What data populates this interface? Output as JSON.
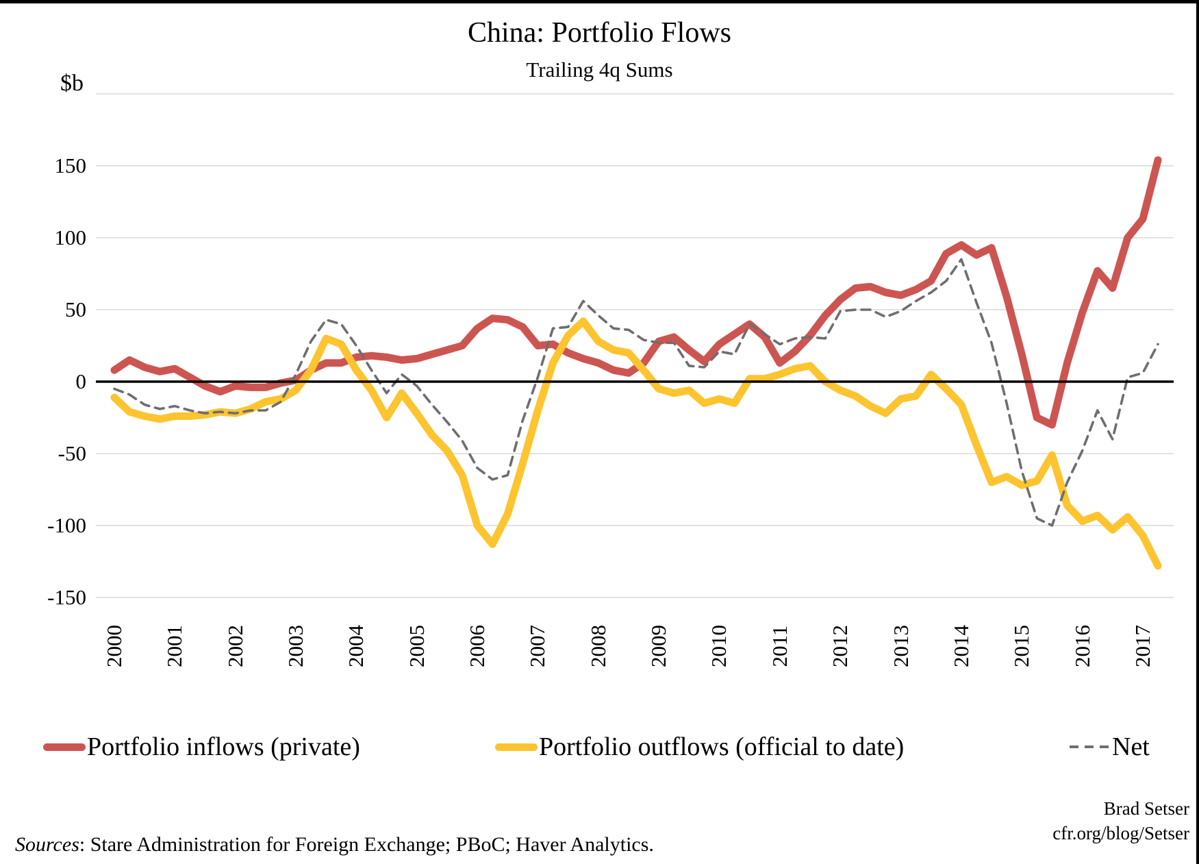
{
  "page": {
    "title": "China: Portfolio Flows",
    "subtitle": "Trailing 4q Sums",
    "unit_label": "$b"
  },
  "legend": [
    {
      "id": "inflows",
      "label": "Portfolio inflows (private)",
      "color": "#CD5551",
      "dash": false
    },
    {
      "id": "outflows",
      "label": "Portfolio outflows (official to date)",
      "color": "#FDC42F",
      "dash": false
    },
    {
      "id": "net",
      "label": "Net",
      "color": "#6E6E6E",
      "dash": true
    }
  ],
  "footer": {
    "sources_prefix": "Sources",
    "sources_rest": ": Stare Administration for Foreign Exchange; PBoC; Haver Analytics.",
    "author": "Brad Setser",
    "site": "cfr.org/blog/Setser"
  },
  "colors": {
    "inflows": "#CD5551",
    "outflows": "#FDC42F",
    "net": "#6E6E6E",
    "gridline": "#D8D8D8",
    "axis": "#000000"
  },
  "chart_data": {
    "type": "line",
    "title": "China: Portfolio Flows",
    "subtitle": "Trailing 4q Sums",
    "ylabel": "$b",
    "ylim": [
      -150,
      200
    ],
    "grid": true,
    "legend_position": "bottom",
    "y_gridlines": [
      200,
      150,
      100,
      50,
      0,
      -50,
      -100,
      -150
    ],
    "y_ticks": [
      150,
      100,
      50,
      0,
      -50,
      -100,
      -150
    ],
    "x_tick_labels": [
      "2000",
      "2001",
      "2002",
      "2003",
      "2004",
      "2005",
      "2006",
      "2007",
      "2008",
      "2009",
      "2010",
      "2011",
      "2012",
      "2013",
      "2014",
      "2015",
      "2016",
      "2017"
    ],
    "x": [
      "2000Q1",
      "2000Q2",
      "2000Q3",
      "2000Q4",
      "2001Q1",
      "2001Q2",
      "2001Q3",
      "2001Q4",
      "2002Q1",
      "2002Q2",
      "2002Q3",
      "2002Q4",
      "2003Q1",
      "2003Q2",
      "2003Q3",
      "2003Q4",
      "2004Q1",
      "2004Q2",
      "2004Q3",
      "2004Q4",
      "2005Q1",
      "2005Q2",
      "2005Q3",
      "2005Q4",
      "2006Q1",
      "2006Q2",
      "2006Q3",
      "2006Q4",
      "2007Q1",
      "2007Q2",
      "2007Q3",
      "2007Q4",
      "2008Q1",
      "2008Q2",
      "2008Q3",
      "2008Q4",
      "2009Q1",
      "2009Q2",
      "2009Q3",
      "2009Q4",
      "2010Q1",
      "2010Q2",
      "2010Q3",
      "2010Q4",
      "2011Q1",
      "2011Q2",
      "2011Q3",
      "2011Q4",
      "2012Q1",
      "2012Q2",
      "2012Q3",
      "2012Q4",
      "2013Q1",
      "2013Q2",
      "2013Q3",
      "2013Q4",
      "2014Q1",
      "2014Q2",
      "2014Q3",
      "2014Q4",
      "2015Q1",
      "2015Q2",
      "2015Q3",
      "2015Q4",
      "2016Q1",
      "2016Q2",
      "2016Q3",
      "2016Q4",
      "2017Q1",
      "2017Q2"
    ],
    "series": [
      {
        "id": "inflows",
        "name": "Portfolio inflows (private)",
        "color": "#CD5551",
        "dash": false,
        "values": [
          8,
          15,
          10,
          7,
          9,
          3,
          -3,
          -7,
          -3,
          -4,
          -4,
          -1,
          1,
          8,
          13,
          13,
          17,
          18,
          17,
          15,
          16,
          19,
          22,
          25,
          37,
          44,
          43,
          38,
          25,
          26,
          20,
          16,
          13,
          8,
          6,
          13,
          28,
          31,
          22,
          14,
          26,
          33,
          40,
          31,
          13,
          21,
          32,
          46,
          57,
          65,
          66,
          62,
          60,
          64,
          70,
          89,
          95,
          88,
          93,
          59,
          19,
          -25,
          -30,
          13,
          48,
          77,
          65,
          100,
          113,
          154
        ]
      },
      {
        "id": "outflows",
        "name": "Portfolio outflows (official to date)",
        "color": "#FDC42F",
        "dash": false,
        "values": [
          -11,
          -21,
          -24,
          -26,
          -24,
          -24,
          -23,
          -21,
          -22,
          -19,
          -14,
          -12,
          -6,
          8,
          30,
          26,
          8,
          -6,
          -25,
          -8,
          -22,
          -37,
          -48,
          -65,
          -100,
          -113,
          -92,
          -57,
          -20,
          13,
          32,
          42,
          28,
          22,
          20,
          8,
          -5,
          -8,
          -6,
          -15,
          -12,
          -15,
          2,
          2,
          5,
          9,
          11,
          0,
          -6,
          -10,
          -17,
          -22,
          -12,
          -10,
          5,
          -5,
          -16,
          -44,
          -70,
          -66,
          -72,
          -69,
          -51,
          -86,
          -97,
          -93,
          -103,
          -94,
          -107,
          -128
        ]
      },
      {
        "id": "net",
        "name": "Net",
        "color": "#6E6E6E",
        "dash": true,
        "values": [
          -5,
          -9,
          -16,
          -19,
          -17,
          -20,
          -22,
          -21,
          -22,
          -20,
          -20,
          -14,
          5,
          28,
          43,
          40,
          25,
          8,
          -8,
          5,
          -3,
          -16,
          -28,
          -41,
          -60,
          -68,
          -65,
          -27,
          3,
          37,
          38,
          56,
          46,
          37,
          36,
          29,
          27,
          27,
          11,
          10,
          21,
          19,
          40,
          33,
          26,
          30,
          31,
          30,
          49,
          50,
          50,
          45,
          49,
          56,
          62,
          70,
          85,
          55,
          27,
          -15,
          -62,
          -95,
          -100,
          -70,
          -48,
          -20,
          -40,
          3,
          6,
          26
        ]
      }
    ]
  }
}
